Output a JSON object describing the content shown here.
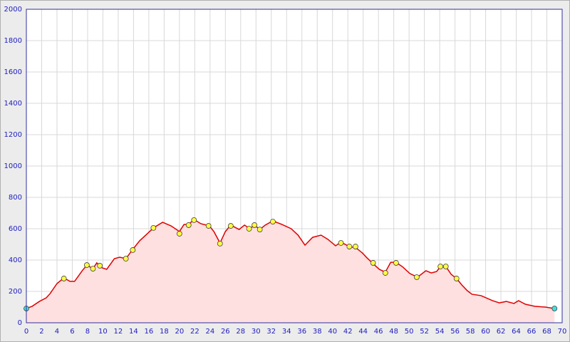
{
  "chart_data": {
    "type": "area",
    "xlim": [
      0,
      70
    ],
    "ylim": [
      0,
      2000
    ],
    "xticks": [
      0,
      2,
      4,
      6,
      8,
      10,
      12,
      14,
      16,
      18,
      20,
      22,
      24,
      26,
      28,
      30,
      32,
      34,
      36,
      38,
      40,
      42,
      44,
      46,
      48,
      50,
      52,
      54,
      56,
      58,
      60,
      62,
      64,
      66,
      68,
      70
    ],
    "yticks": [
      0,
      200,
      400,
      600,
      800,
      1000,
      1200,
      1400,
      1600,
      1800,
      2000
    ],
    "grid": true,
    "series": [
      {
        "color": "#e00000",
        "fill": "#ffe0e0",
        "x": [
          0,
          0.75,
          1.7,
          2.6,
          3.1,
          4.0,
          4.9,
          5.7,
          6.3,
          7.3,
          7.9,
          8.7,
          9.2,
          9.9,
          10.5,
          11.5,
          12.2,
          13.0,
          13.9,
          14.8,
          15.8,
          16.6,
          17.8,
          18.9,
          20.0,
          20.6,
          21.2,
          21.9,
          22.8,
          23.9,
          24.5,
          25.3,
          26.0,
          26.7,
          27.8,
          28.5,
          29.2,
          29.8,
          30.5,
          31.2,
          32.2,
          33.4,
          34.6,
          35.5,
          36.4,
          37.4,
          38.5,
          39.4,
          40.4,
          41.1,
          42.2,
          43.1,
          43.9,
          44.5,
          45.3,
          46.1,
          46.9,
          47.6,
          48.3,
          49.2,
          50.1,
          51.1,
          52.2,
          52.9,
          53.6,
          54.1,
          54.8,
          55.5,
          56.2,
          56.9,
          57.6,
          58.2,
          59.4,
          60.9,
          61.8,
          62.7,
          63.7,
          64.3,
          65.2,
          66.4,
          67.8,
          69.0
        ],
        "values": [
          91,
          105,
          136,
          159,
          186,
          250,
          286,
          264,
          264,
          332,
          368,
          345,
          382,
          350,
          341,
          409,
          418,
          409,
          468,
          523,
          568,
          605,
          641,
          618,
          582,
          627,
          627,
          659,
          632,
          618,
          582,
          509,
          582,
          623,
          595,
          623,
          600,
          623,
          595,
          623,
          650,
          627,
          600,
          559,
          495,
          545,
          559,
          532,
          491,
          514,
          486,
          477,
          445,
          414,
          377,
          341,
          323,
          386,
          386,
          355,
          314,
          291,
          332,
          318,
          327,
          359,
          359,
          309,
          282,
          241,
          205,
          182,
          173,
          141,
          127,
          136,
          123,
          141,
          118,
          105,
          100,
          91
        ]
      },
      {
        "color": "#ffff40",
        "marker": true,
        "x": [
          4.9,
          7.9,
          8.7,
          9.6,
          13.0,
          13.9,
          16.6,
          20.0,
          21.2,
          21.9,
          23.8,
          25.3,
          26.7,
          29.1,
          29.8,
          30.5,
          32.2,
          41.1,
          42.2,
          43.0,
          45.3,
          46.9,
          48.3,
          51.0,
          54.1,
          54.8,
          56.2
        ],
        "values": [
          282,
          368,
          345,
          364,
          409,
          464,
          605,
          568,
          623,
          655,
          618,
          505,
          618,
          600,
          623,
          595,
          645,
          509,
          486,
          486,
          382,
          318,
          382,
          291,
          359,
          359,
          282
        ]
      },
      {
        "color": "#40e0e0",
        "marker": true,
        "x": [
          0,
          69.0
        ],
        "values": [
          91,
          91
        ]
      }
    ]
  }
}
